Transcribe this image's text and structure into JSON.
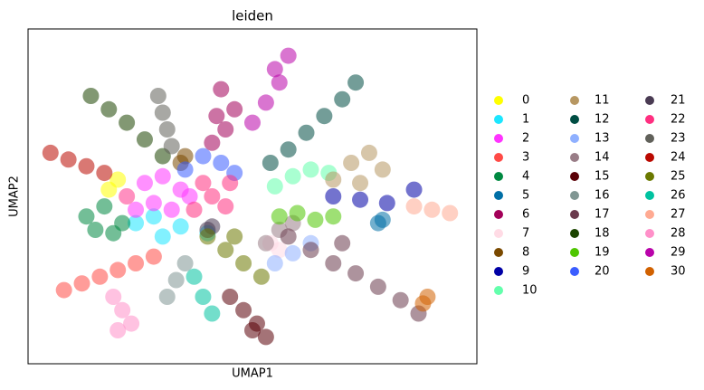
{
  "chart_data": {
    "type": "scatter",
    "title": "leiden",
    "x_label": "UMAP1",
    "y_label": "UMAP2",
    "xlim": [
      0,
      100
    ],
    "ylim": [
      0,
      100
    ],
    "series": [
      {
        "name": "0",
        "color": "#FFFF00",
        "x": [
          18,
          20,
          22
        ],
        "y": [
          52,
          55,
          50
        ]
      },
      {
        "name": "1",
        "color": "#1CE6FF",
        "x": [
          28,
          34,
          40,
          30,
          24
        ],
        "y": [
          44,
          41,
          39,
          38,
          42
        ]
      },
      {
        "name": "2",
        "color": "#FF34FF",
        "x": [
          22,
          26,
          30,
          34,
          24,
          28,
          32,
          36
        ],
        "y": [
          50,
          54,
          56,
          52,
          46,
          48,
          46,
          50
        ]
      },
      {
        "name": "3",
        "color": "#FF4A46",
        "x": [
          8,
          12,
          16,
          20,
          24,
          28
        ],
        "y": [
          22,
          24,
          26,
          28,
          30,
          32
        ]
      },
      {
        "name": "4",
        "color": "#008941",
        "x": [
          13,
          17,
          21,
          15,
          19
        ],
        "y": [
          44,
          47,
          42,
          40,
          39
        ]
      },
      {
        "name": "5",
        "color": "#006FA6",
        "x": [
          78,
          79
        ],
        "y": [
          42,
          43
        ]
      },
      {
        "name": "6",
        "color": "#A30059",
        "x": [
          41,
          44,
          46,
          43,
          42
        ],
        "y": [
          66,
          70,
          76,
          82,
          74
        ]
      },
      {
        "name": "7",
        "color": "#FFDBE5",
        "x": [
          54,
          56
        ],
        "y": [
          36,
          34
        ]
      },
      {
        "name": "8",
        "color": "#7A4900",
        "x": [
          34,
          35
        ],
        "y": [
          60,
          62
        ]
      },
      {
        "name": "9",
        "color": "#0000A6",
        "x": [
          68,
          74,
          80,
          86
        ],
        "y": [
          50,
          49,
          48,
          52
        ]
      },
      {
        "name": "10",
        "color": "#63FFAC",
        "x": [
          55,
          59,
          63,
          67
        ],
        "y": [
          53,
          56,
          58,
          57
        ]
      },
      {
        "name": "11",
        "color": "#B79762",
        "x": [
          68,
          72,
          76,
          79,
          74
        ],
        "y": [
          55,
          60,
          63,
          58,
          54
        ]
      },
      {
        "name": "12",
        "color": "#004D43",
        "x": [
          54,
          58,
          62,
          66,
          70,
          73
        ],
        "y": [
          60,
          64,
          69,
          74,
          79,
          84
        ]
      },
      {
        "name": "13",
        "color": "#8FB0FF",
        "x": [
          55,
          59,
          63
        ],
        "y": [
          30,
          33,
          36
        ]
      },
      {
        "name": "14",
        "color": "#997D87",
        "x": [
          53,
          56,
          59
        ],
        "y": [
          36,
          40,
          42
        ]
      },
      {
        "name": "15",
        "color": "#5A0007",
        "x": [
          45,
          48,
          51,
          53,
          50
        ],
        "y": [
          20,
          16,
          12,
          8,
          10
        ]
      },
      {
        "name": "16",
        "color": "#809693",
        "x": [
          31,
          33,
          35
        ],
        "y": [
          20,
          25,
          30
        ]
      },
      {
        "name": "17",
        "color": "#6A3A4C",
        "x": [
          58,
          63,
          68,
          73,
          78,
          83,
          87,
          70
        ],
        "y": [
          38,
          34,
          30,
          27,
          23,
          19,
          15,
          36
        ]
      },
      {
        "name": "18",
        "color": "#1B4400",
        "x": [
          14,
          18,
          22,
          26,
          30
        ],
        "y": [
          80,
          76,
          72,
          67,
          62
        ]
      },
      {
        "name": "19",
        "color": "#4FC601",
        "x": [
          56,
          60,
          64,
          68
        ],
        "y": [
          44,
          45,
          43,
          44
        ]
      },
      {
        "name": "20",
        "color": "#3B5DFF",
        "x": [
          35,
          39,
          43,
          46
        ],
        "y": [
          58,
          62,
          60,
          57
        ]
      },
      {
        "name": "21",
        "color": "#4A3B53",
        "x": [
          40,
          41
        ],
        "y": [
          40,
          41
        ]
      },
      {
        "name": "22",
        "color": "#FF2F80",
        "x": [
          37,
          41,
          45,
          39,
          44
        ],
        "y": [
          46,
          50,
          54,
          54,
          47
        ]
      },
      {
        "name": "23",
        "color": "#61615A",
        "x": [
          29,
          30,
          31,
          32
        ],
        "y": [
          80,
          75,
          70,
          65
        ]
      },
      {
        "name": "24",
        "color": "#BA0900",
        "x": [
          5,
          9,
          13,
          17
        ],
        "y": [
          63,
          61,
          59,
          57
        ]
      },
      {
        "name": "25",
        "color": "#6B7900",
        "x": [
          40,
          44,
          48,
          52,
          46
        ],
        "y": [
          38,
          34,
          30,
          26,
          38
        ]
      },
      {
        "name": "26",
        "color": "#00C2A0",
        "x": [
          37,
          39,
          41
        ],
        "y": [
          26,
          20,
          15
        ]
      },
      {
        "name": "27",
        "color": "#FFAA92",
        "x": [
          86,
          90,
          94
        ],
        "y": [
          47,
          46,
          45
        ]
      },
      {
        "name": "28",
        "color": "#FF90C9",
        "x": [
          19,
          21,
          23,
          20
        ],
        "y": [
          20,
          16,
          12,
          10
        ]
      },
      {
        "name": "29",
        "color": "#B903AA",
        "x": [
          50,
          53,
          56,
          58,
          55
        ],
        "y": [
          72,
          78,
          84,
          92,
          88
        ]
      },
      {
        "name": "30",
        "color": "#D16100",
        "x": [
          88,
          89
        ],
        "y": [
          18,
          20
        ]
      }
    ]
  }
}
